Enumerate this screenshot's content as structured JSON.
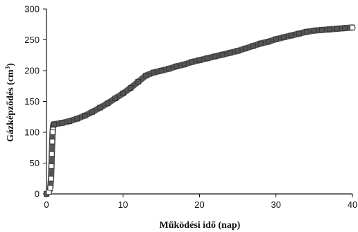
{
  "chart_data": {
    "type": "scatter",
    "title": "",
    "xlabel": "Működési idő (nap)",
    "ylabel_main": "Gázképződés (cm",
    "ylabel_sup": "3",
    "ylabel_end": ")",
    "xlim": [
      0,
      40
    ],
    "ylim": [
      0,
      300
    ],
    "x_ticks": [
      0,
      10,
      20,
      30,
      40
    ],
    "y_ticks": [
      0,
      50,
      100,
      150,
      200,
      250,
      300
    ],
    "grid": false,
    "legend": "none",
    "marker": "square-open",
    "series_color": "#555555",
    "series": [
      {
        "x": [
          0,
          0.3,
          0.5,
          0.6,
          0.65,
          0.7,
          0.75,
          0.8,
          0.85,
          0.9,
          1,
          2,
          3,
          4,
          5,
          6,
          7,
          8,
          9,
          10,
          11,
          12,
          13,
          14,
          15,
          16,
          17,
          18,
          19,
          20,
          21,
          22,
          23,
          24,
          25,
          26,
          27,
          28,
          29,
          30,
          31,
          32,
          33,
          34,
          35,
          36,
          37,
          38,
          39,
          40
        ],
        "y": [
          0,
          3,
          10,
          25,
          45,
          65,
          85,
          100,
          108,
          112,
          113,
          115,
          118,
          122,
          127,
          133,
          140,
          147,
          155,
          163,
          172,
          182,
          192,
          197,
          200,
          203,
          207,
          210,
          214,
          217,
          220,
          223,
          226,
          229,
          232,
          236,
          240,
          244,
          247,
          251,
          254,
          257,
          260,
          263,
          265,
          266,
          267,
          268,
          269,
          270
        ]
      }
    ]
  }
}
